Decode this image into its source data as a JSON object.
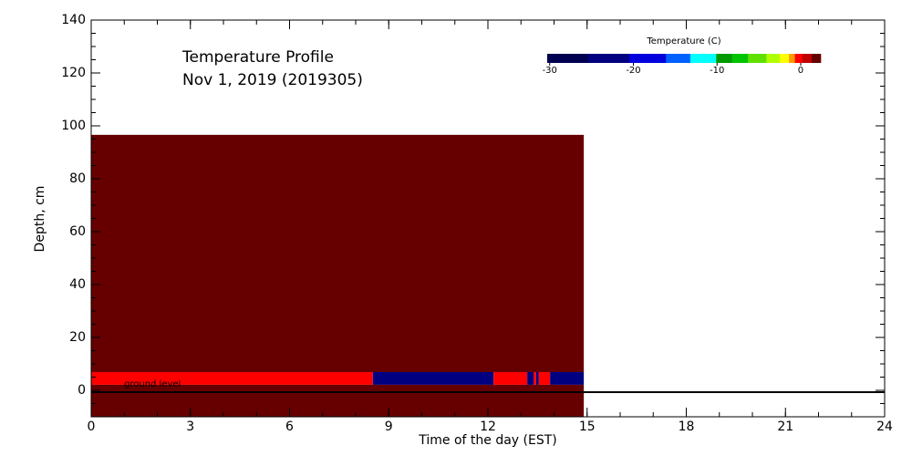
{
  "chart_data": {
    "type": "heatmap",
    "title": "Temperature Profile",
    "subtitle": "Nov  1, 2019 (2019305)",
    "xlabel": "Time of the day (EST)",
    "ylabel": "Depth, cm",
    "xlim": [
      0,
      24
    ],
    "xticks": [
      0,
      3,
      6,
      9,
      12,
      15,
      18,
      21,
      24
    ],
    "ylim": [
      -10,
      140
    ],
    "yticks": [
      0,
      20,
      40,
      60,
      80,
      100,
      120,
      140
    ],
    "rows": [
      {
        "y_edges": [
          6.9,
          96.6
        ],
        "x_edges": [
          0,
          14.9
        ],
        "values": [
          2
        ]
      },
      {
        "y_edges": [
          2.1,
          6.9
        ],
        "x_edges": [
          0,
          8.52,
          12.17,
          13.19,
          13.38,
          13.46,
          13.54,
          13.88,
          14.9
        ],
        "values": [
          -0.3,
          -23,
          -0.3,
          -23,
          -0.3,
          -23,
          -0.3,
          -23
        ]
      },
      {
        "y_edges": [
          -10,
          2.1
        ],
        "x_edges": [
          0,
          14.9
        ],
        "values": [
          2
        ]
      }
    ],
    "ground_level": {
      "depth": 0,
      "label": "ground level"
    },
    "colorbar": {
      "label": "Temperature (C)",
      "edges": [
        -30.3,
        -25.4,
        -20.5,
        -16.1,
        -13.2,
        -10.1,
        -8.2,
        -6.3,
        -4.1,
        -2.5,
        -1.4,
        -0.7,
        0.2,
        1.3,
        2.4
      ],
      "colors": [
        "#000050",
        "#000080",
        "#0000dd",
        "#0060ff",
        "#00ffff",
        "#009a00",
        "#00c400",
        "#60e000",
        "#b0ff00",
        "#ffff00",
        "#ff9900",
        "#ff0000",
        "#c00000",
        "#660000"
      ],
      "ticks": [
        -30,
        -20,
        -10,
        0
      ]
    }
  }
}
